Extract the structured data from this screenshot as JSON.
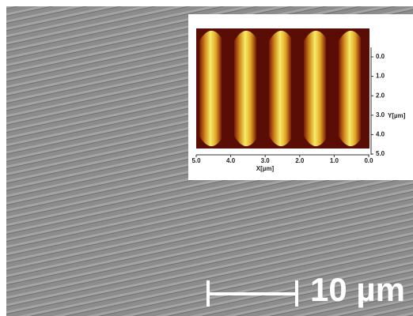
{
  "scale_bar": {
    "label": "10 µm"
  },
  "inset": {
    "x_label": "X[µm]",
    "y_label": "Y[µm]",
    "x_ticks": [
      "5.0",
      "4.0",
      "3.0",
      "2.0",
      "1.0",
      "0.0"
    ],
    "y_ticks": [
      "0.0",
      "1.0",
      "2.0",
      "3.0",
      "4.0",
      "5.0"
    ]
  }
}
